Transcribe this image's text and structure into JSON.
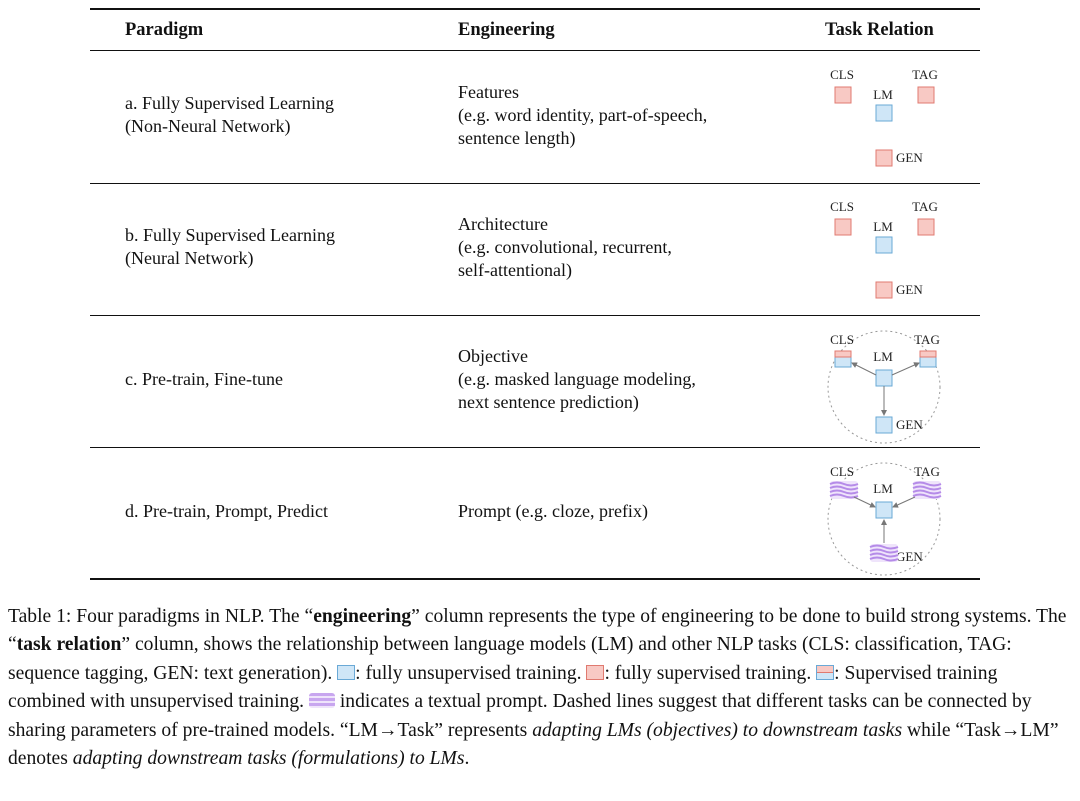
{
  "table": {
    "headers": [
      "Paradigm",
      "Engineering",
      "Task Relation"
    ],
    "rows": [
      {
        "paradigm": [
          "a. Fully Supervised Learning",
          "(Non-Neural Network)"
        ],
        "engineering": [
          "Features",
          "(e.g. word identity, part-of-speech,",
          "sentence length)"
        ],
        "relation": {
          "cls": "CLS",
          "tag": "TAG",
          "lm": "LM",
          "gen": "GEN"
        }
      },
      {
        "paradigm": [
          "b. Fully Supervised Learning",
          "(Neural Network)"
        ],
        "engineering": [
          "Architecture",
          "(e.g. convolutional, recurrent,",
          "self-attentional)"
        ],
        "relation": {
          "cls": "CLS",
          "tag": "TAG",
          "lm": "LM",
          "gen": "GEN"
        }
      },
      {
        "paradigm": [
          "c. Pre-train, Fine-tune"
        ],
        "engineering": [
          "Objective",
          "(e.g. masked language modeling,",
          "next sentence prediction)"
        ],
        "relation": {
          "cls": "CLS",
          "tag": "TAG",
          "lm": "LM",
          "gen": "GEN"
        }
      },
      {
        "paradigm": [
          "d. Pre-train, Prompt, Predict"
        ],
        "engineering": [
          "Prompt (e.g. cloze, prefix)"
        ],
        "relation": {
          "cls": "CLS",
          "tag": "TAG",
          "lm": "LM",
          "gen": "GEN"
        }
      }
    ]
  },
  "caption": [
    "Table 1: Four paradigms in NLP. The “",
    "engineering",
    "” column represents the type of engineering to be done to build strong systems. The “",
    "task relation",
    "” column, shows the relationship between language models (LM) and other NLP tasks (CLS: classification, TAG: sequence tagging, GEN: text generation). ",
    ": fully unsupervised training. ",
    ": fully supervised training. ",
    ": Supervised training combined with unsupervised training. ",
    " indicates a textual prompt. Dashed lines suggest that different tasks can be connected by sharing parameters of pre-trained models. “LM→Task” represents ",
    "adapting LMs (objectives) to downstream tasks",
    " while “Task→LM” denotes ",
    "adapting downstream tasks (formulations) to LMs",
    "."
  ]
}
